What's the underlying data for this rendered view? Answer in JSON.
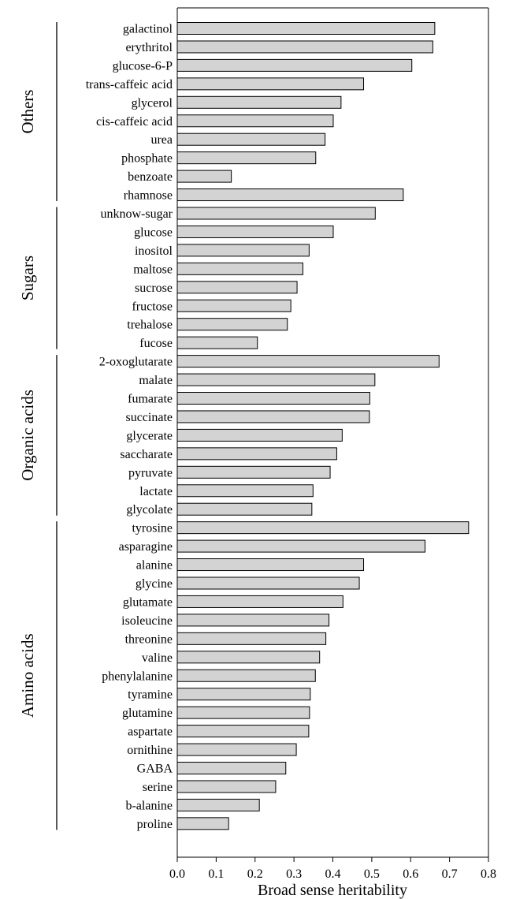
{
  "chart_data": {
    "type": "bar",
    "orientation": "horizontal",
    "xlabel": "Broad sense heritability",
    "ylabel": "",
    "xlim": [
      0,
      0.8
    ],
    "xticks": [
      "0.0",
      "0.1",
      "0.2",
      "0.3",
      "0.4",
      "0.5",
      "0.6",
      "0.7",
      "0.8"
    ],
    "grid": false,
    "bar_color": "#d3d3d3",
    "groups": [
      {
        "name": "Others",
        "start": 0,
        "end": 9
      },
      {
        "name": "Sugars",
        "start": 10,
        "end": 17
      },
      {
        "name": "Organic acids",
        "start": 18,
        "end": 26
      },
      {
        "name": "Amino acids",
        "start": 27,
        "end": 43
      }
    ],
    "categories": [
      "galactinol",
      "erythritol",
      "glucose-6-P",
      "trans-caffeic acid",
      "glycerol",
      "cis-caffeic acid",
      "urea",
      "phosphate",
      "benzoate",
      "rhamnose",
      "unknow-sugar",
      "glucose",
      "inositol",
      "maltose",
      "sucrose",
      "fructose",
      "trehalose",
      "fucose",
      "2-oxoglutarate",
      "malate",
      "fumarate",
      "succinate",
      "glycerate",
      "saccharate",
      "pyruvate",
      "lactate",
      "glycolate",
      "tyrosine",
      "asparagine",
      "alanine",
      "glycine",
      "glutamate",
      "isoleucine",
      "threonine",
      "valine",
      "phenylalanine",
      "tyramine",
      "glutamine",
      "aspartate",
      "ornithine",
      "GABA",
      "serine",
      "b-alanine",
      "proline"
    ],
    "values": [
      0.662,
      0.657,
      0.603,
      0.479,
      0.421,
      0.401,
      0.38,
      0.356,
      0.139,
      0.581,
      0.509,
      0.401,
      0.339,
      0.323,
      0.308,
      0.292,
      0.283,
      0.206,
      0.673,
      0.508,
      0.495,
      0.494,
      0.424,
      0.41,
      0.393,
      0.349,
      0.346,
      0.749,
      0.637,
      0.479,
      0.468,
      0.426,
      0.39,
      0.382,
      0.366,
      0.355,
      0.342,
      0.34,
      0.338,
      0.306,
      0.279,
      0.253,
      0.211,
      0.132
    ]
  }
}
